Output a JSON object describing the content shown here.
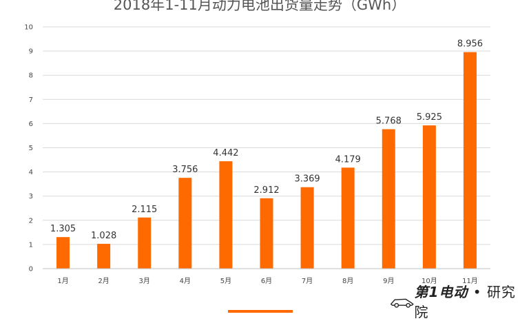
{
  "chart_data": {
    "type": "bar",
    "title": "2018年1-11月动力电池出货量走势（GWh）",
    "categories": [
      "1月",
      "2月",
      "3月",
      "4月",
      "5月",
      "6月",
      "7月",
      "8月",
      "9月",
      "10月",
      "11月"
    ],
    "values": [
      1.305,
      1.028,
      2.115,
      3.756,
      4.442,
      2.912,
      3.369,
      4.179,
      5.768,
      5.925,
      8.956
    ],
    "data_labels": [
      "1.305",
      "1.028",
      "2.115",
      "3.756",
      "4.442",
      "2.912",
      "3.369",
      "4.179",
      "5.768",
      "5.925",
      "8.956"
    ],
    "yticks": [
      "0",
      "1",
      "2",
      "3",
      "4",
      "5",
      "6",
      "7",
      "8",
      "9",
      "10"
    ],
    "ylim": [
      0,
      10
    ],
    "grid": true,
    "bar_color": "#ff6a00"
  },
  "watermark": {
    "brand_text": "第1电动",
    "separator": "•",
    "suffix_text": "研究院"
  }
}
